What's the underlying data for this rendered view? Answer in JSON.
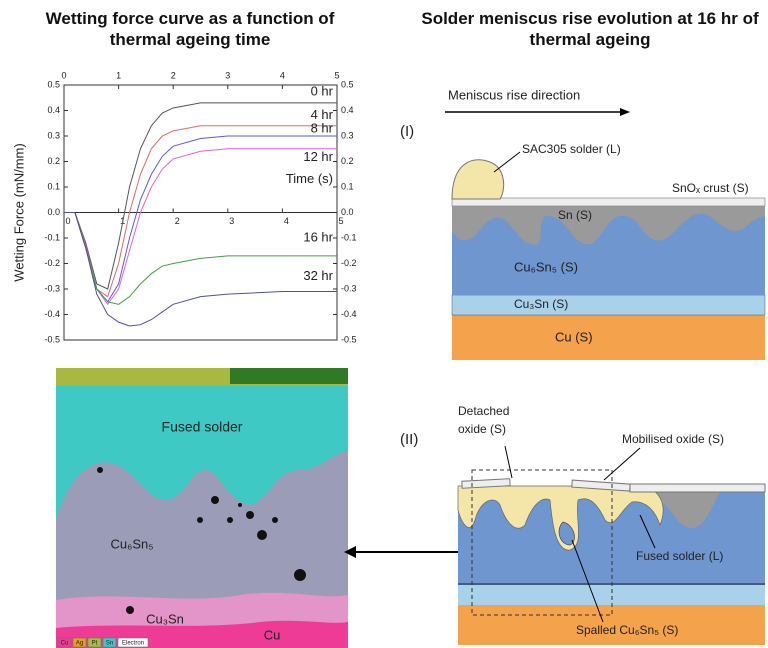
{
  "chart_data": {
    "type": "line",
    "title": "Wetting force curve as a function of thermal ageing time",
    "ylabel": "Wetting Force (mN/mm)",
    "xlabel": "Time (s)",
    "x": [
      0,
      0.2,
      0.4,
      0.6,
      0.8,
      1.0,
      1.2,
      1.4,
      1.6,
      1.8,
      2.0,
      2.5,
      3,
      4,
      5
    ],
    "series": [
      {
        "name": "0 hr",
        "color": "#555555",
        "values": [
          0,
          0,
          -0.12,
          -0.28,
          -0.3,
          -0.12,
          0.1,
          0.25,
          0.34,
          0.39,
          0.41,
          0.43,
          0.43,
          0.43,
          0.43
        ]
      },
      {
        "name": "4 hr",
        "color": "#e06868",
        "values": [
          0,
          0,
          -0.13,
          -0.3,
          -0.33,
          -0.2,
          0.0,
          0.15,
          0.25,
          0.3,
          0.32,
          0.34,
          0.34,
          0.34,
          0.34
        ]
      },
      {
        "name": "8 hr",
        "color": "#5a5ae0",
        "values": [
          0,
          0,
          -0.14,
          -0.3,
          -0.35,
          -0.28,
          -0.1,
          0.05,
          0.15,
          0.22,
          0.26,
          0.29,
          0.3,
          0.3,
          0.3
        ]
      },
      {
        "name": "12 hr",
        "color": "#e060e0",
        "values": [
          0,
          0,
          -0.14,
          -0.3,
          -0.36,
          -0.3,
          -0.15,
          0.0,
          0.1,
          0.17,
          0.21,
          0.24,
          0.25,
          0.25,
          0.25
        ]
      },
      {
        "name": "16 hr",
        "color": "#40a040",
        "values": [
          0,
          0,
          -0.14,
          -0.3,
          -0.35,
          -0.36,
          -0.33,
          -0.28,
          -0.24,
          -0.21,
          -0.2,
          -0.18,
          -0.17,
          -0.17,
          -0.17
        ]
      },
      {
        "name": "32 hr",
        "color": "#50509a",
        "values": [
          0,
          0,
          -0.14,
          -0.32,
          -0.4,
          -0.43,
          -0.445,
          -0.44,
          -0.42,
          -0.39,
          -0.36,
          -0.33,
          -0.32,
          -0.31,
          -0.31
        ]
      }
    ],
    "xlim": [
      0,
      5
    ],
    "xticks": [
      0,
      1,
      2,
      3,
      4,
      5
    ],
    "ylim": [
      -0.5,
      0.5
    ],
    "yticks": [
      -0.5,
      -0.4,
      -0.3,
      -0.2,
      -0.1,
      {
        "value": 0,
        "label": "0.0"
      },
      0.1,
      0.2,
      0.3,
      0.4,
      0.5
    ]
  },
  "micrograph": {
    "labels": {
      "fused_solder": "Fused solder",
      "cu6sn5": "Cu₆Sn₅",
      "cu3sn": "Cu₃Sn",
      "cu": "Cu"
    },
    "legend": [
      "Cu",
      "Ag",
      "Pt",
      "Sn",
      "Electron"
    ]
  },
  "schematic": {
    "title": "Solder meniscus rise evolution at 16 hr of thermal ageing",
    "direction": "Meniscus rise direction",
    "panel1": {
      "tag": "(I)",
      "solder": "SAC305 solder (L)",
      "crust": "SnOₓ crust (S)",
      "sn": "Sn (S)",
      "cu6sn5": "Cu₆Sn₅ (S)",
      "cu3sn": "Cu₃Sn (S)",
      "cu": "Cu (S)"
    },
    "panel2": {
      "tag": "(II)",
      "detached": [
        "Detached",
        "oxide (S)"
      ],
      "mobilised": "Mobilised oxide (S)",
      "fused": "Fused solder (L)",
      "spalled": "Spalled Cu₆Sn₅ (S)"
    }
  }
}
